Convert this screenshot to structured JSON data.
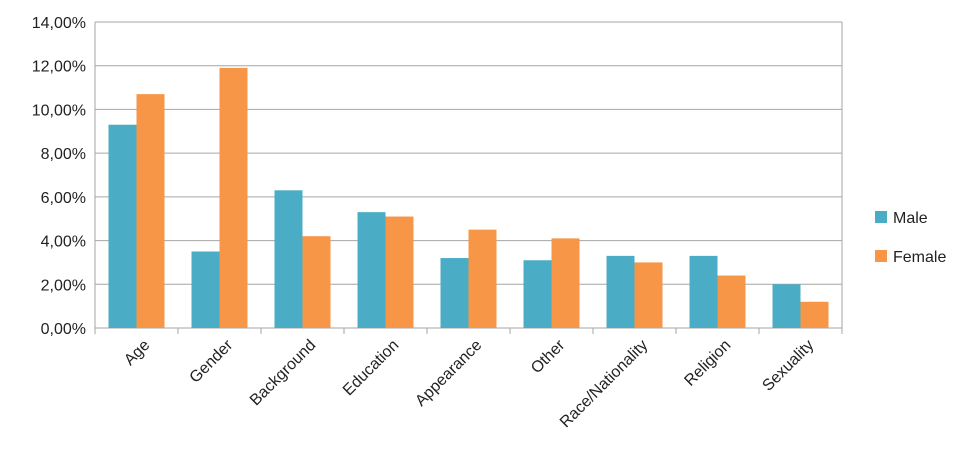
{
  "chart_data": {
    "type": "bar",
    "categories": [
      "Age",
      "Gender",
      "Background",
      "Education",
      "Appearance",
      "Other",
      "Race/Nationality",
      "Religion",
      "Sexuality"
    ],
    "series": [
      {
        "name": "Male",
        "color": "#4bacc6",
        "values": [
          9.3,
          3.5,
          6.3,
          5.3,
          3.2,
          3.1,
          3.3,
          3.3,
          2.0
        ]
      },
      {
        "name": "Female",
        "color": "#f79646",
        "values": [
          10.7,
          11.9,
          4.2,
          5.1,
          4.5,
          4.1,
          3.0,
          2.4,
          1.2
        ]
      }
    ],
    "ylim": [
      0,
      14
    ],
    "yticks": [
      0,
      2,
      4,
      6,
      8,
      10,
      12,
      14
    ],
    "ytick_labels": [
      "0,00%",
      "2,00%",
      "4,00%",
      "6,00%",
      "8,00%",
      "10,00%",
      "12,00%",
      "14,00%"
    ],
    "grid": true,
    "legend_position": "right"
  }
}
